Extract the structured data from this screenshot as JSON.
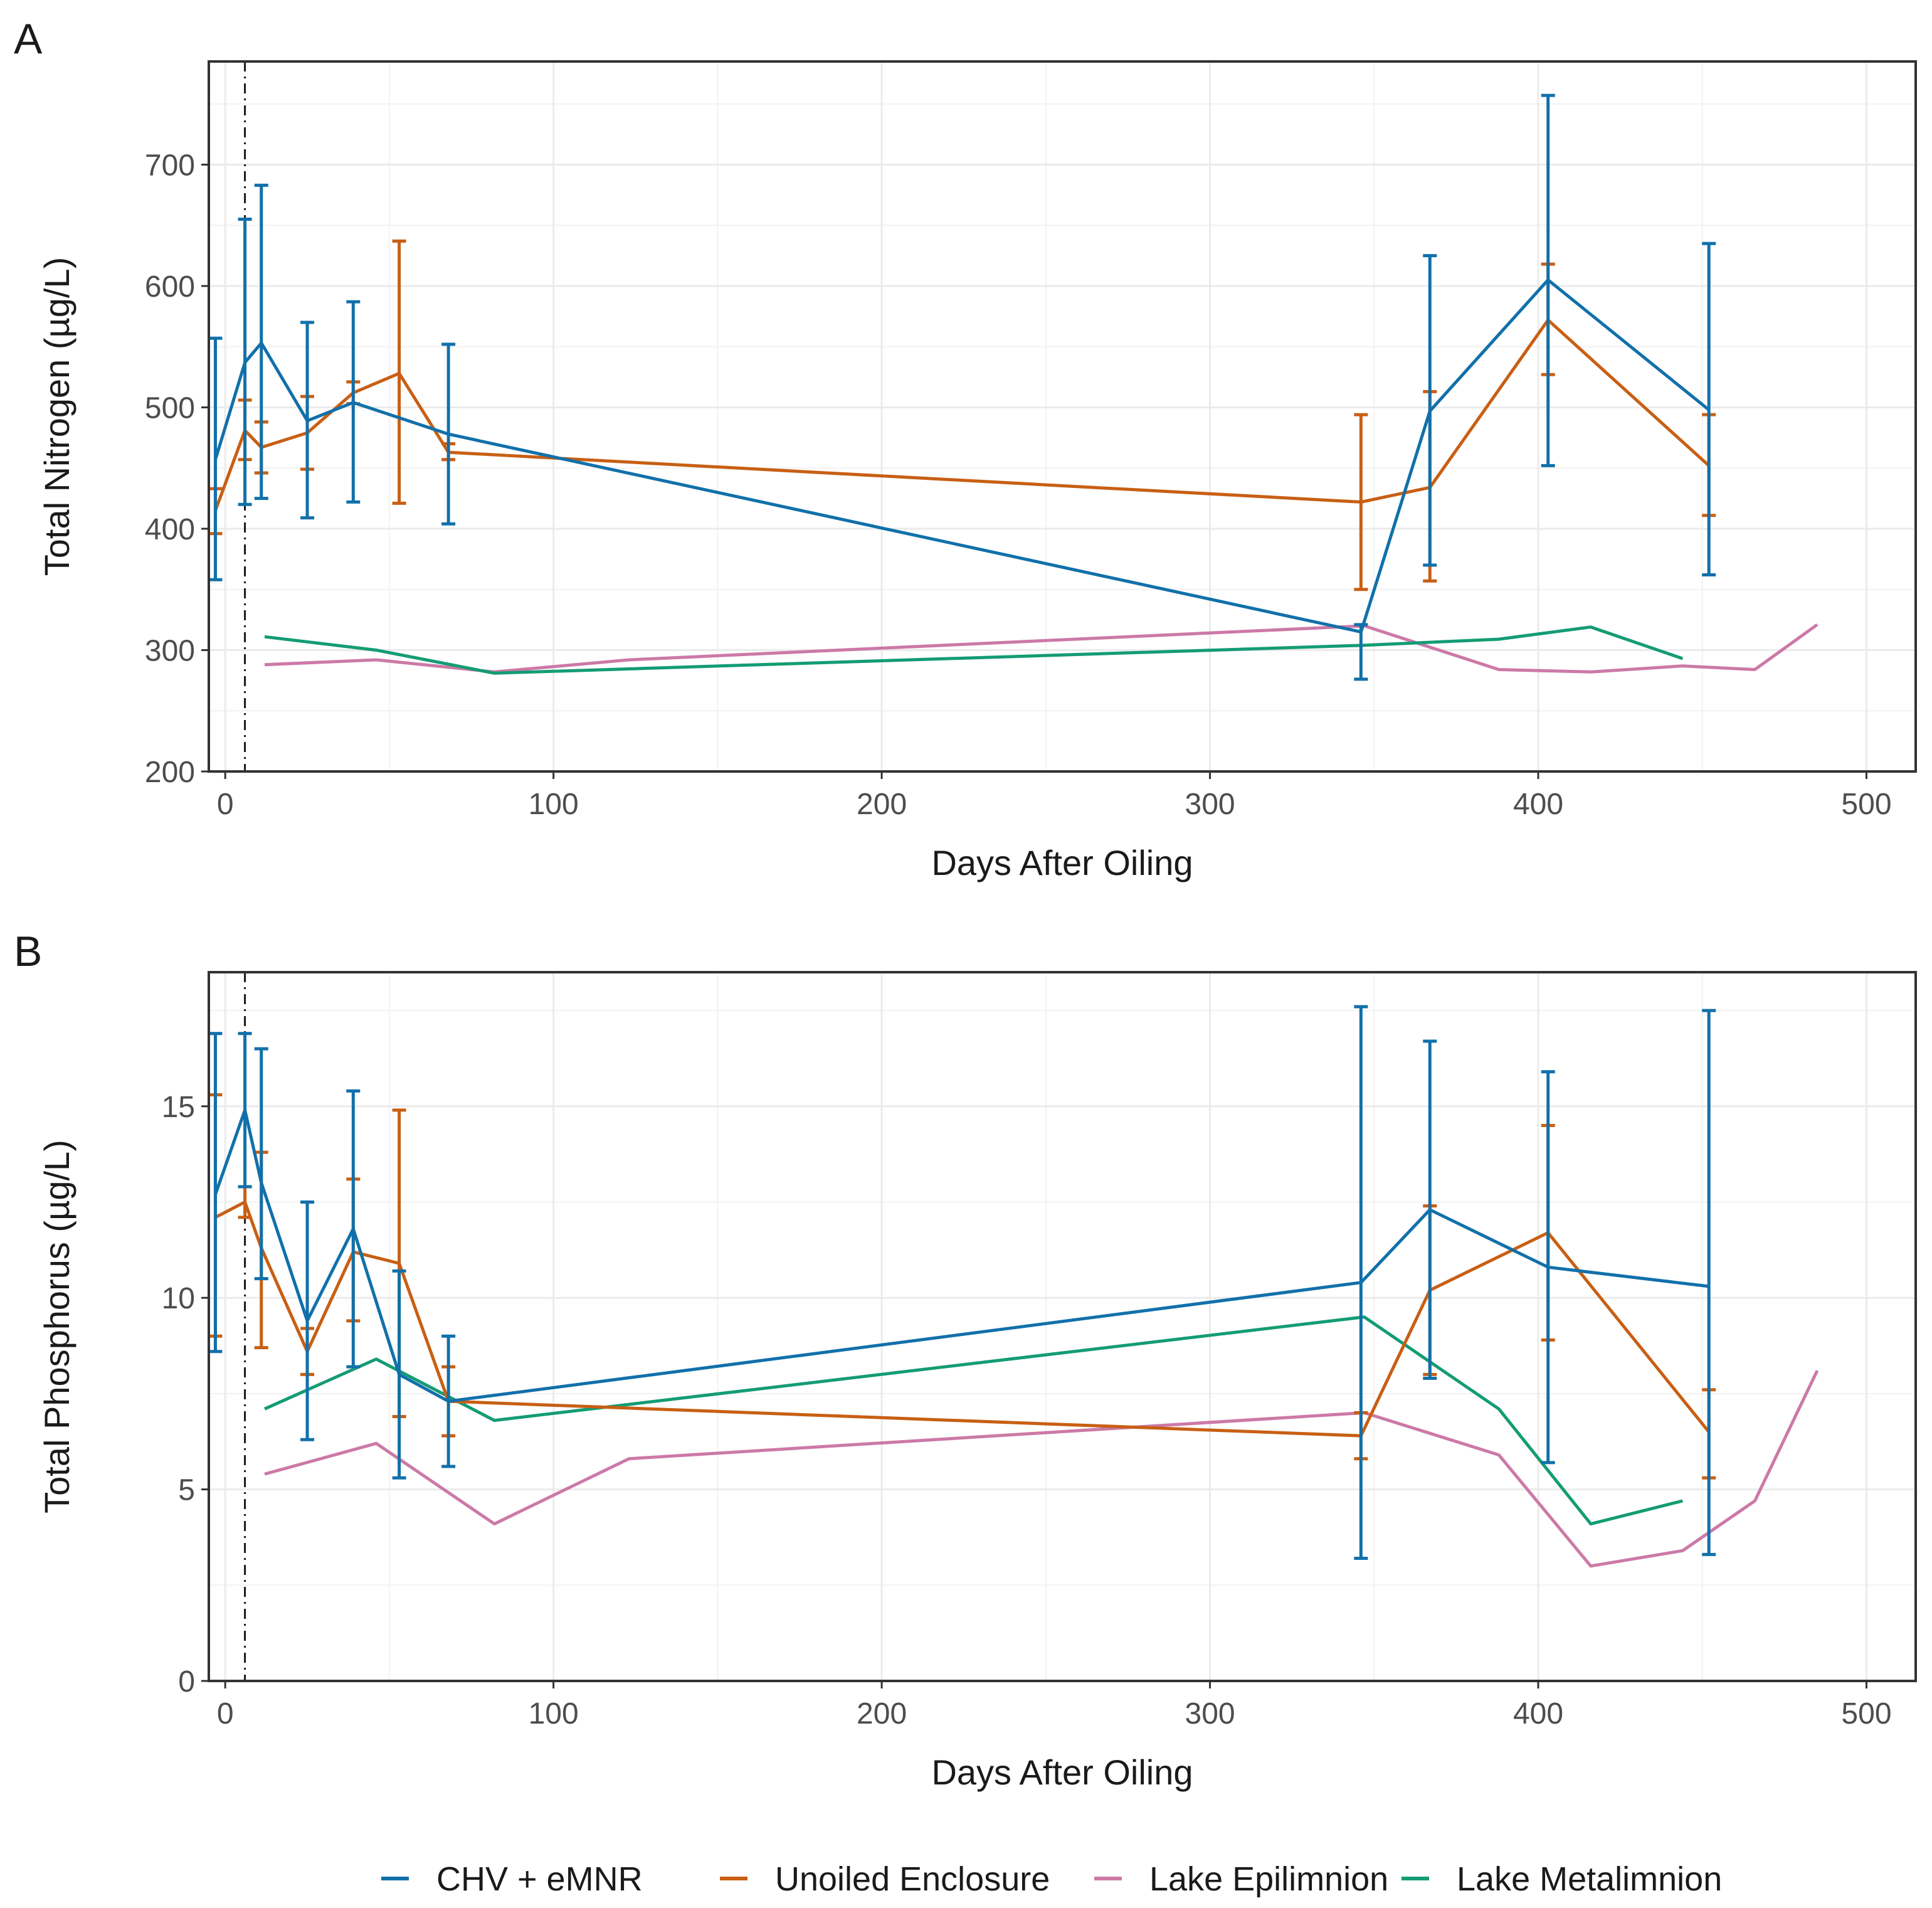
{
  "legend": [
    {
      "key": "chv",
      "label": "CHV + eMNR",
      "color": "#1170aa"
    },
    {
      "key": "unoiled",
      "label": "Unoiled Enclosure",
      "color": "#c85f14"
    },
    {
      "key": "epi",
      "label": "Lake Epilimnion",
      "color": "#cc79a7"
    },
    {
      "key": "meta",
      "label": "Lake Metalimnion",
      "color": "#149c74"
    }
  ],
  "chart_data": [
    {
      "type": "line",
      "panel_label": "A",
      "xlabel": "Days After Oiling",
      "ylabel": "Total Nitrogen (µg/L)",
      "xlim": [
        -5,
        515
      ],
      "ylim": [
        200,
        785
      ],
      "xticks": [
        0,
        100,
        200,
        300,
        400,
        500
      ],
      "yticks": [
        200,
        300,
        400,
        500,
        600,
        700
      ],
      "oiling_day": 6,
      "series": [
        {
          "key": "chv",
          "name": "CHV + eMNR",
          "x": [
            -3,
            6,
            11,
            25,
            39,
            68,
            346,
            367,
            403,
            452
          ],
          "y": [
            457,
            537,
            553,
            489,
            504,
            478,
            315,
            497,
            605,
            498
          ],
          "err_low": [
            358,
            420,
            425,
            409,
            422,
            404,
            276,
            370,
            452,
            362
          ],
          "err_high": [
            557,
            655,
            683,
            570,
            587,
            552,
            321,
            625,
            757,
            635
          ]
        },
        {
          "key": "unoiled",
          "name": "Unoiled Enclosure",
          "x": [
            -3,
            6,
            11,
            25,
            39,
            53,
            68,
            346,
            367,
            403,
            452
          ],
          "y": [
            415,
            481,
            467,
            479,
            512,
            528,
            463,
            422,
            434,
            572,
            452
          ],
          "err_low": [
            396,
            457,
            446,
            449,
            503,
            421,
            457,
            350,
            357,
            527,
            411
          ],
          "err_high": [
            433,
            506,
            488,
            509,
            521,
            637,
            470,
            494,
            513,
            618,
            494
          ]
        },
        {
          "key": "epi",
          "name": "Lake Epilimnion",
          "x": [
            12,
            46,
            82,
            123,
            347,
            388,
            416,
            444,
            466,
            485
          ],
          "y": [
            288,
            292,
            282,
            292,
            320,
            284,
            282,
            287,
            284,
            321
          ]
        },
        {
          "key": "meta",
          "name": "Lake Metalimnion",
          "x": [
            12,
            46,
            82,
            347,
            388,
            416,
            444
          ],
          "y": [
            311,
            300,
            281,
            304,
            309,
            319,
            293
          ]
        }
      ]
    },
    {
      "type": "line",
      "panel_label": "B",
      "xlabel": "Days After Oiling",
      "ylabel": "Total Phosphorus (µg/L)",
      "xlim": [
        -5,
        515
      ],
      "ylim": [
        0,
        18.5
      ],
      "xticks": [
        0,
        100,
        200,
        300,
        400,
        500
      ],
      "yticks": [
        0,
        5,
        10,
        15
      ],
      "oiling_day": 6,
      "series": [
        {
          "key": "chv",
          "name": "CHV + eMNR",
          "x": [
            -3,
            6,
            11,
            25,
            39,
            53,
            68,
            346,
            367,
            403,
            452
          ],
          "y": [
            12.7,
            14.9,
            13.0,
            9.4,
            11.8,
            8.0,
            7.3,
            10.4,
            12.3,
            10.8,
            10.3
          ],
          "err_low": [
            8.6,
            12.9,
            10.5,
            6.3,
            8.2,
            5.3,
            5.6,
            3.2,
            7.9,
            5.7,
            3.3
          ],
          "err_high": [
            16.9,
            16.9,
            16.5,
            12.5,
            15.4,
            10.7,
            9.0,
            17.6,
            16.7,
            15.9,
            17.5
          ]
        },
        {
          "key": "unoiled",
          "name": "Unoiled Enclosure",
          "x": [
            -3,
            6,
            11,
            25,
            39,
            53,
            68,
            346,
            367,
            403,
            452
          ],
          "y": [
            12.1,
            12.5,
            11.3,
            8.6,
            11.2,
            10.9,
            7.3,
            6.4,
            10.2,
            11.7,
            6.5
          ],
          "err_low": [
            9.0,
            12.1,
            8.7,
            8.0,
            9.4,
            6.9,
            6.4,
            5.8,
            8.0,
            8.9,
            5.3
          ],
          "err_high": [
            15.3,
            12.9,
            13.8,
            9.2,
            13.1,
            14.9,
            8.2,
            7.0,
            12.4,
            14.5,
            7.6
          ]
        },
        {
          "key": "epi",
          "name": "Lake Epilimnion",
          "x": [
            12,
            46,
            82,
            123,
            347,
            388,
            416,
            444,
            466,
            485
          ],
          "y": [
            5.4,
            6.2,
            4.1,
            5.8,
            7.0,
            5.9,
            3.0,
            3.4,
            4.7,
            8.1
          ]
        },
        {
          "key": "meta",
          "name": "Lake Metalimnion",
          "x": [
            12,
            46,
            82,
            347,
            388,
            416,
            444
          ],
          "y": [
            7.1,
            8.4,
            6.8,
            9.5,
            7.1,
            4.1,
            4.7
          ]
        }
      ]
    }
  ]
}
